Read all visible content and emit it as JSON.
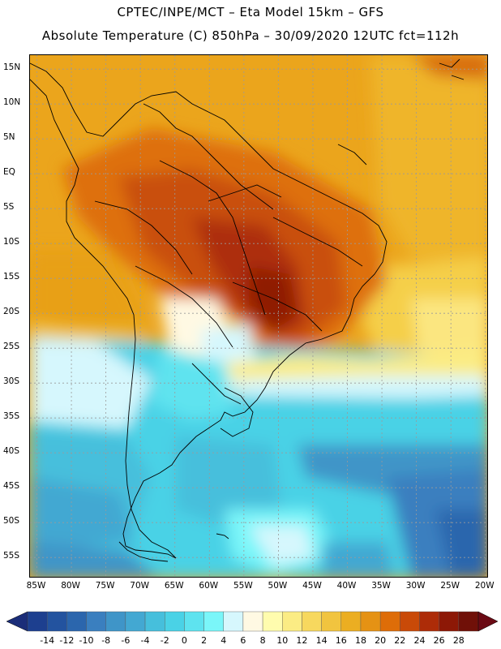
{
  "header": {
    "line1": "CPTEC/INPE/MCT –  Eta Model 15km – GFS",
    "line2": "Absolute Temperature (C) 850hPa – 30/09/2020 12UTC fct=112h"
  },
  "map": {
    "lat_range": [
      -58,
      17
    ],
    "lon_range": [
      -86,
      -19.5
    ],
    "lat_ticks": [
      "15N",
      "10N",
      "5N",
      "EQ",
      "5S",
      "10S",
      "15S",
      "20S",
      "25S",
      "30S",
      "35S",
      "40S",
      "45S",
      "50S",
      "55S"
    ],
    "lat_values": [
      15,
      10,
      5,
      0,
      -5,
      -10,
      -15,
      -20,
      -25,
      -30,
      -35,
      -40,
      -45,
      -50,
      -55
    ],
    "lon_ticks": [
      "85W",
      "80W",
      "75W",
      "70W",
      "65W",
      "60W",
      "55W",
      "50W",
      "45W",
      "40W",
      "35W",
      "30W",
      "25W",
      "20W"
    ],
    "lon_values": [
      -85,
      -80,
      -75,
      -70,
      -65,
      -60,
      -55,
      -50,
      -45,
      -40,
      -35,
      -30,
      -25,
      -20
    ]
  },
  "colorbar": {
    "labels": [
      "-14",
      "-12",
      "-10",
      "-8",
      "-6",
      "-4",
      "-2",
      "0",
      "2",
      "4",
      "6",
      "8",
      "10",
      "12",
      "14",
      "16",
      "18",
      "20",
      "22",
      "24",
      "26",
      "28"
    ],
    "colors": [
      "#1d3f8f",
      "#23539f",
      "#2b66ad",
      "#3a7fbf",
      "#3f95c8",
      "#43a8d2",
      "#46bfdc",
      "#4ad2e6",
      "#5ee3ef",
      "#7af6f9",
      "#d6f7fd",
      "#fff9e3",
      "#fffcae",
      "#fbec84",
      "#f7d85e",
      "#f1c43f",
      "#ebae22",
      "#e59214",
      "#de6d08",
      "#c94a08",
      "#ad2c08",
      "#8d1806",
      "#701008"
    ],
    "under_color": "#1b2d79",
    "over_color": "#6b0a14"
  }
}
